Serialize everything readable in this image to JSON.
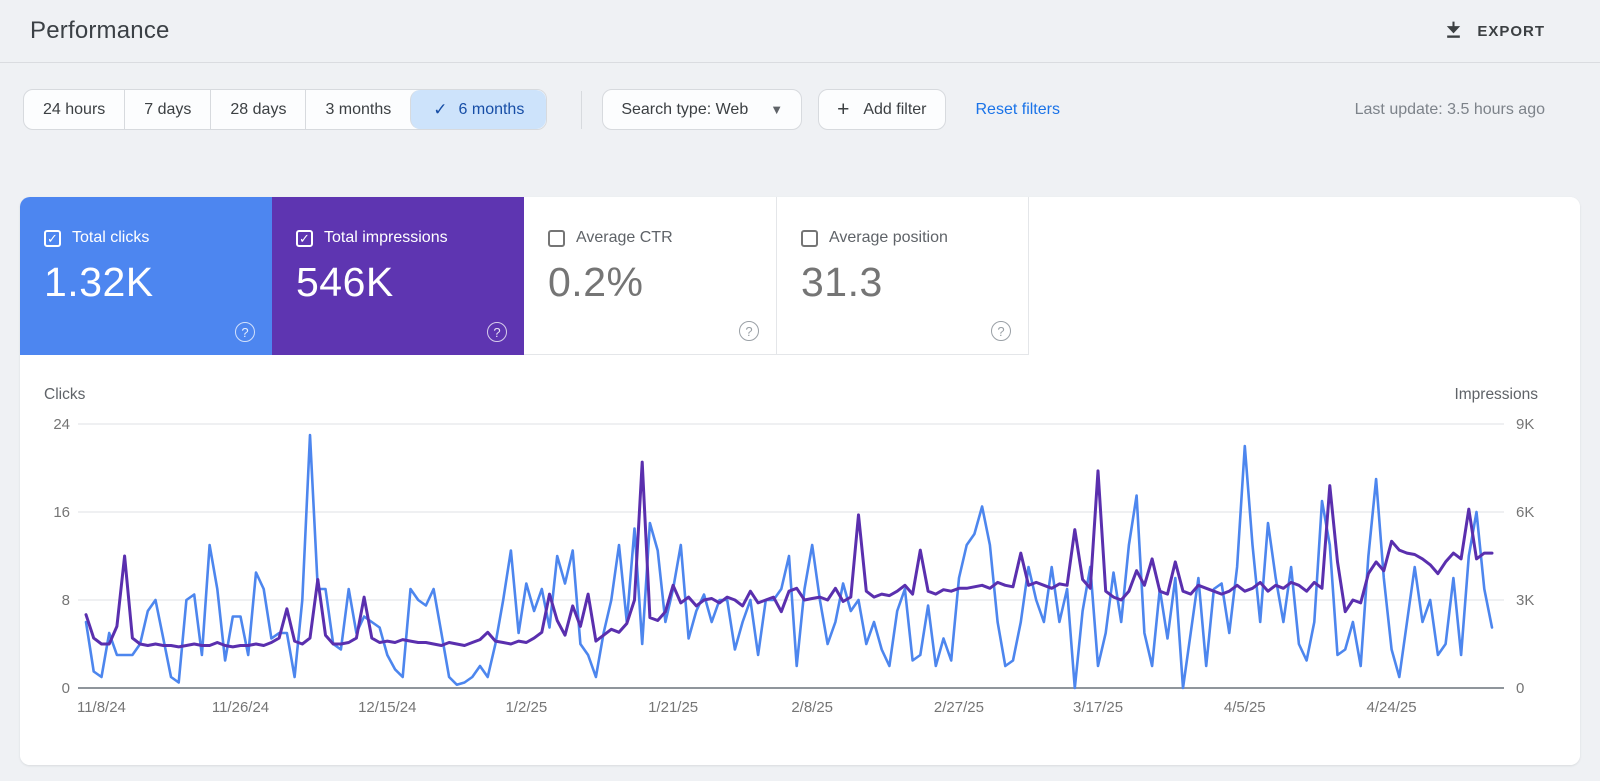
{
  "header": {
    "title": "Performance",
    "export_label": "EXPORT"
  },
  "icons": {
    "check": "✓",
    "plus": "+",
    "caret_down": "▼",
    "question": "?"
  },
  "filter_bar": {
    "date_ranges": [
      {
        "label": "24 hours",
        "selected": false
      },
      {
        "label": "7 days",
        "selected": false
      },
      {
        "label": "28 days",
        "selected": false
      },
      {
        "label": "3 months",
        "selected": false
      },
      {
        "label": "6 months",
        "selected": true
      }
    ],
    "search_type_label": "Search type: Web",
    "add_filter_label": "Add filter",
    "reset_filters_label": "Reset filters",
    "last_update": "Last update: 3.5 hours ago"
  },
  "metric_cards": [
    {
      "label": "Total clicks",
      "value": "1.32K",
      "checked": true,
      "bg": "#4d86f0"
    },
    {
      "label": "Total impressions",
      "value": "546K",
      "checked": true,
      "bg": "#5e35b1"
    },
    {
      "label": "Average CTR",
      "value": "0.2%",
      "checked": false,
      "bg": "#ffffff"
    },
    {
      "label": "Average position",
      "value": "31.3",
      "checked": false,
      "bg": "#ffffff"
    }
  ],
  "chart_data": {
    "type": "line",
    "left_axis": {
      "label": "Clicks",
      "max": 24,
      "tick_values": [
        24,
        16,
        8,
        0
      ],
      "ticks": [
        "24",
        "16",
        "8",
        "0"
      ]
    },
    "right_axis": {
      "label": "Impressions",
      "max": 9000,
      "tick_values": [
        9000,
        6000,
        3000,
        0
      ],
      "ticks": [
        "9K",
        "6K",
        "3K",
        "0"
      ]
    },
    "x_ticks": [
      "11/8/24",
      "11/26/24",
      "12/15/24",
      "1/2/25",
      "1/21/25",
      "2/8/25",
      "2/27/25",
      "3/17/25",
      "4/5/25",
      "4/24/25"
    ],
    "x_tick_indices": [
      2,
      20,
      39,
      57,
      76,
      94,
      113,
      131,
      150,
      169
    ],
    "grid": true,
    "legend_position": "none",
    "series": [
      {
        "name": "Clicks",
        "axis": "left",
        "color": "#4d86ee",
        "values": [
          6,
          1.5,
          1,
          5,
          3,
          3,
          3,
          4,
          7,
          8,
          4.5,
          1,
          0.5,
          8,
          8.5,
          3,
          13,
          9,
          2.5,
          6.5,
          6.5,
          3,
          10.5,
          9,
          4.5,
          5,
          5,
          1,
          8,
          23,
          9,
          9,
          4,
          3.5,
          9,
          5,
          6.5,
          6,
          5.5,
          3,
          1.7,
          1,
          9,
          8,
          7.5,
          9,
          5,
          1,
          0.3,
          0.5,
          1,
          2,
          1,
          4,
          8,
          12.5,
          5,
          9.5,
          7,
          9,
          5.5,
          12,
          9.5,
          12.5,
          4,
          3,
          1,
          5,
          8,
          13,
          6,
          14.5,
          4,
          15,
          12.5,
          6,
          9,
          13,
          4.5,
          7,
          8.5,
          6,
          8,
          8,
          3.5,
          6,
          8,
          3,
          8,
          8,
          9,
          12,
          2,
          9,
          13,
          8,
          4,
          6,
          9.5,
          7,
          8,
          4,
          6,
          3.5,
          2,
          7,
          9,
          2.5,
          3,
          7.5,
          2,
          4.5,
          2.5,
          10,
          13,
          14,
          16.5,
          13,
          6,
          2,
          2.5,
          6,
          11,
          8,
          6,
          11,
          6,
          9,
          0,
          7,
          11,
          2,
          5,
          10.5,
          6,
          13,
          17.5,
          5,
          2,
          9,
          4.5,
          10,
          0,
          5,
          10,
          2,
          9,
          9.5,
          5,
          11,
          22,
          13,
          6,
          15,
          10,
          6,
          11,
          4,
          2.5,
          6,
          17,
          13,
          3,
          3.5,
          6,
          2,
          12,
          19,
          10,
          3.5,
          1,
          6,
          11,
          6,
          8,
          3,
          4,
          10,
          3,
          12,
          16,
          9,
          5.5
        ]
      },
      {
        "name": "Impressions",
        "axis": "right",
        "color": "#5a2fae",
        "values": [
          2500,
          1700,
          1500,
          1500,
          2100,
          4500,
          1700,
          1500,
          1450,
          1500,
          1450,
          1450,
          1400,
          1450,
          1500,
          1450,
          1450,
          1550,
          1450,
          1400,
          1450,
          1450,
          1500,
          1450,
          1550,
          1700,
          2700,
          1600,
          1500,
          1700,
          3700,
          1800,
          1500,
          1500,
          1550,
          1700,
          3100,
          1700,
          1550,
          1600,
          1550,
          1650,
          1600,
          1550,
          1550,
          1500,
          1450,
          1550,
          1500,
          1450,
          1550,
          1650,
          1900,
          1600,
          1550,
          1500,
          1600,
          1550,
          1700,
          1900,
          3200,
          2300,
          1800,
          2800,
          2100,
          3200,
          1600,
          1800,
          2000,
          1900,
          2200,
          3000,
          7700,
          2400,
          2300,
          2600,
          3500,
          2900,
          3100,
          2800,
          3000,
          3050,
          2900,
          3100,
          3000,
          2800,
          3300,
          2900,
          3000,
          3100,
          2600,
          3300,
          3400,
          3000,
          3050,
          3100,
          3000,
          3400,
          2950,
          3100,
          5900,
          3300,
          3100,
          3200,
          3150,
          3300,
          3500,
          3200,
          4700,
          3300,
          3200,
          3350,
          3300,
          3400,
          3400,
          3450,
          3500,
          3400,
          3600,
          3500,
          3450,
          4600,
          3500,
          3600,
          3500,
          3400,
          3550,
          3500,
          5400,
          3700,
          3400,
          7400,
          3300,
          3100,
          3000,
          3300,
          4000,
          3500,
          4400,
          3300,
          3200,
          4300,
          3300,
          3200,
          3500,
          3400,
          3300,
          3200,
          3300,
          3500,
          3300,
          3400,
          3600,
          3300,
          3500,
          3400,
          3600,
          3500,
          3300,
          3600,
          3400,
          6900,
          4300,
          2600,
          3000,
          2900,
          3900,
          4300,
          4000,
          5000,
          4700,
          4600,
          4550,
          4400,
          4200,
          3900,
          4300,
          4600,
          4400,
          6100,
          4400,
          4600,
          4600
        ]
      }
    ]
  }
}
